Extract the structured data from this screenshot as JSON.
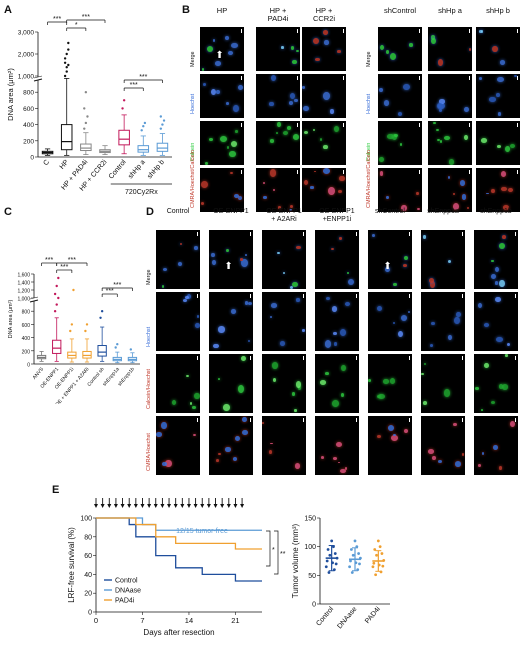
{
  "panels": {
    "A": "A",
    "B": "B",
    "C": "C",
    "D": "D",
    "E": "E"
  },
  "chart_data": [
    {
      "type": "box",
      "panel": "A",
      "ylabel": "DNA area (μm²)",
      "yticks": [
        "0",
        "200",
        "400",
        "600",
        "800",
        "1,000",
        "2,000",
        "3,000"
      ],
      "categories": [
        "C",
        "HP",
        "HP + PAD4i",
        "HP + CCR2i",
        "Control",
        "shHp a",
        "shHp b"
      ],
      "group_label": "720Cy2Rx",
      "boxes": [
        {
          "q1": 40,
          "med": 55,
          "q3": 70,
          "lo": 20,
          "hi": 100,
          "color": "#111111"
        },
        {
          "q1": 90,
          "med": 190,
          "q3": 400,
          "lo": 20,
          "hi": 970,
          "color": "#111111"
        },
        {
          "q1": 80,
          "med": 110,
          "q3": 160,
          "lo": 30,
          "hi": 300,
          "color": "#888888"
        },
        {
          "q1": 55,
          "med": 70,
          "q3": 90,
          "lo": 30,
          "hi": 140,
          "color": "#888888"
        },
        {
          "q1": 150,
          "med": 220,
          "q3": 330,
          "lo": 40,
          "hi": 520,
          "color": "#c2185b"
        },
        {
          "q1": 60,
          "med": 90,
          "q3": 140,
          "lo": 20,
          "hi": 260,
          "color": "#5b9bd5"
        },
        {
          "q1": 70,
          "med": 110,
          "q3": 170,
          "lo": 20,
          "hi": 290,
          "color": "#5b9bd5"
        }
      ],
      "significance": [
        "***",
        "*",
        "***",
        "***",
        "***"
      ]
    },
    {
      "type": "box",
      "panel": "C",
      "ylabel": "DNA area (μm²)",
      "yticks": [
        "0",
        "200",
        "400",
        "600",
        "800",
        "1,000",
        "1,200",
        "1,400",
        "1,600"
      ],
      "categories": [
        "ANVS",
        "OE-ENPP1",
        "OE-ENPP1i",
        "OE + ENPP1 + A2ARi",
        "Control sh",
        "shEnpp1a",
        "shEnpp1b"
      ],
      "boxes": [
        {
          "q1": 80,
          "med": 100,
          "q3": 130,
          "lo": 40,
          "hi": 190,
          "color": "#777777"
        },
        {
          "q1": 160,
          "med": 240,
          "q3": 360,
          "lo": 40,
          "hi": 700,
          "color": "#c2185b"
        },
        {
          "q1": 90,
          "med": 130,
          "q3": 180,
          "lo": 30,
          "hi": 380,
          "color": "#f0a030"
        },
        {
          "q1": 90,
          "med": 130,
          "q3": 190,
          "lo": 30,
          "hi": 380,
          "color": "#f0a030"
        },
        {
          "q1": 120,
          "med": 180,
          "q3": 280,
          "lo": 40,
          "hi": 560,
          "color": "#1f4e9c"
        },
        {
          "q1": 50,
          "med": 70,
          "q3": 100,
          "lo": 20,
          "hi": 180,
          "color": "#5b9bd5"
        },
        {
          "q1": 50,
          "med": 70,
          "q3": 100,
          "lo": 20,
          "hi": 170,
          "color": "#5b9bd5"
        }
      ],
      "significance": [
        "***",
        "***",
        "***",
        "***",
        "***"
      ]
    },
    {
      "type": "line",
      "panel": "E-left",
      "ylabel": "LRF-free survival (%)",
      "xlabel": "Days after resection",
      "xticks": [
        "0",
        "7",
        "14",
        "21"
      ],
      "yticks": [
        "0",
        "20",
        "40",
        "60",
        "80",
        "100"
      ],
      "annotation": "12/15 tumor-free",
      "significance": [
        "*",
        "**"
      ],
      "series": [
        {
          "name": "Control",
          "color": "#1f4e9c",
          "points": [
            [
              0,
              100
            ],
            [
              5,
              100
            ],
            [
              5,
              93
            ],
            [
              6,
              93
            ],
            [
              6,
              80
            ],
            [
              9,
              80
            ],
            [
              9,
              60
            ],
            [
              12,
              60
            ],
            [
              12,
              47
            ],
            [
              16,
              47
            ],
            [
              16,
              40
            ],
            [
              21,
              40
            ],
            [
              21,
              33
            ],
            [
              25,
              33
            ]
          ]
        },
        {
          "name": "DNAase",
          "color": "#5b9bd5",
          "points": [
            [
              0,
              100
            ],
            [
              7,
              100
            ],
            [
              7,
              93
            ],
            [
              9,
              93
            ],
            [
              9,
              87
            ],
            [
              25,
              87
            ]
          ]
        },
        {
          "name": "PAD4i",
          "color": "#f0a030",
          "points": [
            [
              0,
              100
            ],
            [
              6,
              100
            ],
            [
              6,
              93
            ],
            [
              9,
              93
            ],
            [
              9,
              80
            ],
            [
              12,
              80
            ],
            [
              12,
              73
            ],
            [
              21,
              73
            ],
            [
              21,
              67
            ],
            [
              25,
              67
            ]
          ]
        }
      ]
    },
    {
      "type": "scatter",
      "panel": "E-right",
      "ylabel": "Tumor volume (mm³)",
      "yticks": [
        "0",
        "50",
        "100",
        "150"
      ],
      "categories": [
        "Control",
        "DNAase",
        "PAD4i"
      ],
      "means": [
        80,
        78,
        75
      ],
      "sd": [
        22,
        20,
        18
      ],
      "colors": [
        "#1f4e9c",
        "#5b9bd5",
        "#f0a030"
      ]
    }
  ],
  "panelB": {
    "headers": [
      "HP",
      "HP +\nPAD4i",
      "HP +\nCCR2i",
      "shControl",
      "shHp a",
      "shHp b"
    ],
    "rows": [
      "Merge",
      "Hoechst",
      "Calcein",
      "CMRA/Hoechst/Calcein"
    ]
  },
  "panelD": {
    "headers": [
      "Control",
      "OE-ENPP1",
      "OE-ENPP1\n+ A2ARi",
      "OE-ENPP1\n+ENPP1i",
      "shControl",
      "shEnpp1a",
      "shEnpp1b"
    ],
    "rows": [
      "Merge",
      "Hoechst",
      "Calcein/Hoechst",
      "CMRA/Hoechst"
    ]
  },
  "colors": {
    "merge_red": "#c0392b",
    "hoechst_blue": "#3b6fd8",
    "calcein_green": "#2ecc40"
  }
}
